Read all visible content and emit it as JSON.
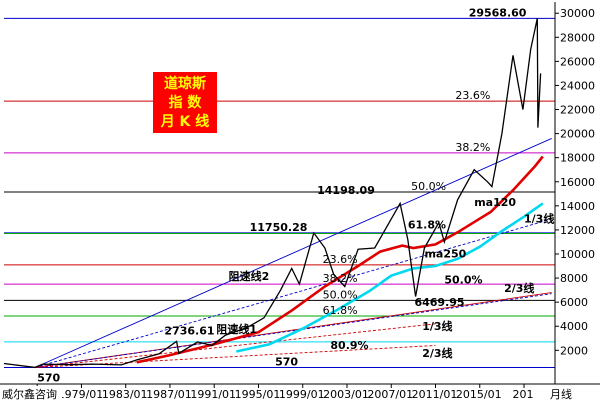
{
  "chart_data": {
    "type": "line",
    "title_lines": [
      "道琼斯",
      "指  数",
      "月 K 线"
    ],
    "source": "威尔鑫咨询",
    "x_unit": "月线",
    "xlim": [
      1972.0,
      2021.8
    ],
    "ylim": [
      -800,
      30600
    ],
    "y_ticks": [
      2000,
      4000,
      6000,
      8000,
      10000,
      12000,
      14000,
      16000,
      18000,
      20000,
      22000,
      24000,
      26000,
      28000,
      30000
    ],
    "x_ticks": [
      {
        "t": 1975.0,
        "label": "/01"
      },
      {
        "t": 1979.0,
        "label": "1979/01"
      },
      {
        "t": 1983.0,
        "label": "1983/01"
      },
      {
        "t": 1987.0,
        "label": "1987/01"
      },
      {
        "t": 1991.0,
        "label": "1991/01"
      },
      {
        "t": 1995.0,
        "label": "1995/01"
      },
      {
        "t": 1999.0,
        "label": "1999/01"
      },
      {
        "t": 2003.0,
        "label": "2003/01"
      },
      {
        "t": 2007.0,
        "label": "2007/01"
      },
      {
        "t": 2011.0,
        "label": "2011/01"
      },
      {
        "t": 2015.0,
        "label": "2015/01"
      },
      {
        "t": 2019.0,
        "label": "201"
      }
    ],
    "price_series": {
      "name": "道琼斯指数",
      "color": "#000000",
      "points": [
        [
          1972.0,
          900
        ],
        [
          1974.8,
          580
        ],
        [
          1975.5,
          850
        ],
        [
          1978.0,
          800
        ],
        [
          1980.0,
          850
        ],
        [
          1982.6,
          790
        ],
        [
          1984.0,
          1200
        ],
        [
          1986.0,
          1700
        ],
        [
          1987.6,
          2736.61
        ],
        [
          1987.8,
          1750
        ],
        [
          1989.5,
          2700
        ],
        [
          1990.8,
          2400
        ],
        [
          1992.0,
          3250
        ],
        [
          1994.0,
          3900
        ],
        [
          1995.5,
          4700
        ],
        [
          1997.0,
          7000
        ],
        [
          1998.0,
          8800
        ],
        [
          1998.7,
          7500
        ],
        [
          2000.0,
          11750.28
        ],
        [
          2001.0,
          10500
        ],
        [
          2001.8,
          8300
        ],
        [
          2002.8,
          7300
        ],
        [
          2004.0,
          10400
        ],
        [
          2005.5,
          10500
        ],
        [
          2007.8,
          14198.09
        ],
        [
          2008.5,
          11200
        ],
        [
          2009.2,
          6469.95
        ],
        [
          2010.0,
          10500
        ],
        [
          2011.3,
          12600
        ],
        [
          2011.8,
          11000
        ],
        [
          2013.0,
          14500
        ],
        [
          2014.5,
          17000
        ],
        [
          2015.7,
          16000
        ],
        [
          2016.1,
          15600
        ],
        [
          2017.0,
          20000
        ],
        [
          2018.0,
          26500
        ],
        [
          2018.9,
          22000
        ],
        [
          2019.6,
          27000
        ],
        [
          2020.2,
          29568.6
        ],
        [
          2020.25,
          20500
        ],
        [
          2020.5,
          25000
        ]
      ]
    },
    "ma120": {
      "name": "ma120",
      "color": "#e00000",
      "points": [
        [
          1984.0,
          1000
        ],
        [
          1987.0,
          1600
        ],
        [
          1991.0,
          2500
        ],
        [
          1995.0,
          3500
        ],
        [
          1998.0,
          5300
        ],
        [
          2001.0,
          7300
        ],
        [
          2004.0,
          9000
        ],
        [
          2006.0,
          10200
        ],
        [
          2008.0,
          10700
        ],
        [
          2009.0,
          10500
        ],
        [
          2011.0,
          10800
        ],
        [
          2013.0,
          11800
        ],
        [
          2016.0,
          13500
        ],
        [
          2018.0,
          15300
        ],
        [
          2020.0,
          17300
        ],
        [
          2020.7,
          18100
        ]
      ]
    },
    "ma250": {
      "name": "ma250",
      "color": "#00d8f0",
      "points": [
        [
          1993.0,
          1900
        ],
        [
          1996.0,
          2500
        ],
        [
          1999.0,
          3800
        ],
        [
          2002.0,
          5300
        ],
        [
          2005.0,
          6900
        ],
        [
          2007.0,
          8200
        ],
        [
          2009.0,
          8800
        ],
        [
          2011.0,
          9000
        ],
        [
          2013.0,
          9600
        ],
        [
          2015.0,
          10600
        ],
        [
          2017.0,
          11900
        ],
        [
          2019.0,
          13100
        ],
        [
          2020.7,
          14200
        ]
      ]
    },
    "horizontal_levels": [
      {
        "value": 29568.6,
        "color": "#0000cc",
        "label": "29568.60",
        "label_x": 2014.0
      },
      {
        "value": 22700,
        "color": "#cc0000",
        "label": "23.6%",
        "label_x": 2012.8
      },
      {
        "value": 18400,
        "color": "#cc00cc",
        "label": "38.2%",
        "label_x": 2012.8
      },
      {
        "value": 15150,
        "color": "#000000",
        "label": "50.0%",
        "label_x": 2008.8
      },
      {
        "value": 11750.28,
        "color": "#0000cc",
        "label": "11750.28",
        "label_x": 1994.2
      },
      {
        "value": 11700,
        "color": "#00aa00",
        "label": "",
        "label_x": 2004.0
      },
      {
        "value": 9100,
        "color": "#cc0000",
        "label": "23.6%",
        "label_x": 2000.8
      },
      {
        "value": 7500,
        "color": "#cc00cc",
        "label": "38.2%",
        "label_x": 2000.8
      },
      {
        "value": 6150,
        "color": "#000000",
        "label": "50.0%",
        "label_x": 2000.8
      },
      {
        "value": 4850,
        "color": "#00aa00",
        "label": "61.8%",
        "label_x": 2000.8
      },
      {
        "value": 2700,
        "color": "#00d8f0",
        "label": "",
        "label_x": 1980.0
      },
      {
        "value": 570,
        "color": "#0000cc",
        "label": "570",
        "label_x": 1996.5
      }
    ],
    "trend_lines": [
      {
        "name": "阻速线2",
        "color": "#0000cc",
        "dash": false,
        "from": [
          1974.8,
          570
        ],
        "to": [
          2021.5,
          19600
        ],
        "label_x": 1992.3,
        "label_y": 7850
      },
      {
        "name": "阻速线1",
        "color": "#cc0000",
        "dash": false,
        "from": [
          1974.8,
          570
        ],
        "to": [
          2021.5,
          6800
        ],
        "label_x": 1991.2,
        "label_y": 3420
      },
      {
        "name": "1/3线",
        "color": "#0000cc",
        "dash": true,
        "from": [
          1974.8,
          570
        ],
        "to": [
          2021.5,
          12900
        ],
        "label_x": 2019.0,
        "label_y": 12600
      },
      {
        "name": "2/3线",
        "color": "#0000cc",
        "dash": true,
        "from": [
          1974.8,
          570
        ],
        "to": [
          2021.5,
          6700
        ],
        "label_x": 2017.2,
        "label_y": 6850
      },
      {
        "name": "1/3线",
        "color": "#cc0000",
        "dash": true,
        "from": [
          1974.8,
          570
        ],
        "to": [
          2011.0,
          4200
        ],
        "label_x": 2009.8,
        "label_y": 3700
      },
      {
        "name": "2/3线",
        "color": "#cc0000",
        "dash": true,
        "from": [
          1974.8,
          570
        ],
        "to": [
          2011.0,
          2400
        ],
        "label_x": 2009.8,
        "label_y": 1450
      }
    ],
    "annotations": [
      {
        "text": "14198.09",
        "t": 2000.3,
        "v": 15000,
        "color": "#0000cc"
      },
      {
        "text": "6469.95",
        "t": 2009.1,
        "v": 5700,
        "color": "#0000cc"
      },
      {
        "text": "2736.61",
        "t": 1986.5,
        "v": 3300,
        "color": "#cc0000"
      },
      {
        "text": "570",
        "t": 1975.0,
        "v": -600,
        "color": "#cc0000"
      },
      {
        "text": "61.8%",
        "t": 2008.5,
        "v": 12100,
        "color": "#00aa00"
      },
      {
        "text": "50.0%",
        "t": 2011.8,
        "v": 7550,
        "color": "#00d8f0"
      },
      {
        "text": "80.9%",
        "t": 2001.5,
        "v": 2100,
        "color": "#00d8f0"
      },
      {
        "text": "ma120",
        "t": 2014.5,
        "v": 14000,
        "color": "#cc0000"
      },
      {
        "text": "ma250",
        "t": 2010.0,
        "v": 9700,
        "color": "#00aaaa"
      }
    ]
  }
}
